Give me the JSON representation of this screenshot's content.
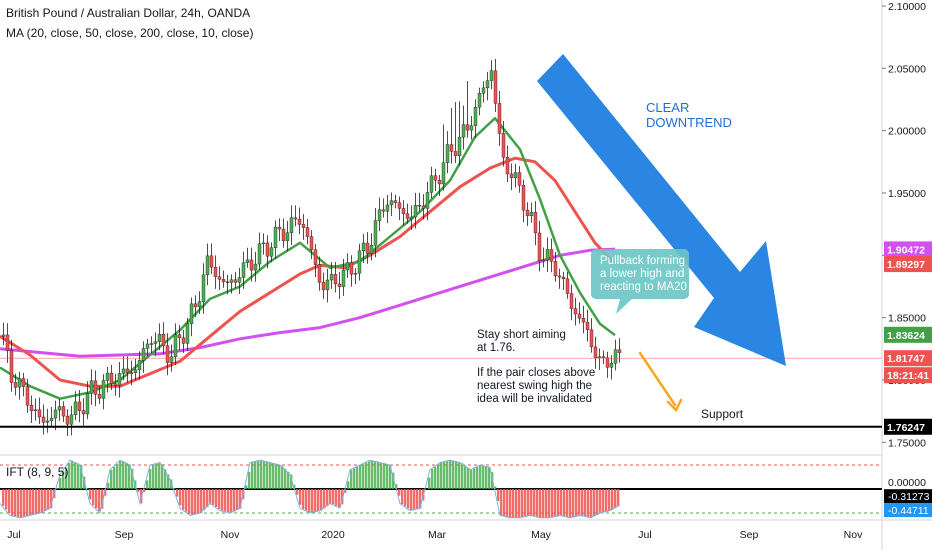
{
  "header": {
    "title": "British Pound / Australian Dollar, 24h, OANDA",
    "ma_legend": "MA (20, close, 50, close, 200, close, 10, close)"
  },
  "oscillator": {
    "label": "IFT (8, 9, 5)"
  },
  "colors": {
    "up": "#4caf50",
    "down": "#ef5350",
    "ma20": "#43a047",
    "ma50": "#ef5350",
    "ma200": "#d24ff0",
    "arrow": "#1f7fe0",
    "orange_arrow": "#f5a623",
    "callout_bg": "#6ac5c5",
    "support": "#000000"
  },
  "chart_data": {
    "type": "candlestick",
    "title": "British Pound / Australian Dollar, 24h, OANDA",
    "ylim": [
      1.735,
      2.1
    ],
    "x_ticks": [
      "Jul",
      "Sep",
      "Nov",
      "2020",
      "Mar",
      "May",
      "Jul",
      "Sep",
      "Nov"
    ],
    "y_ticks": [
      "2.10000",
      "2.05000",
      "2.00000",
      "1.95000",
      "1.90000",
      "1.85000",
      "1.80000",
      "1.75000"
    ],
    "price_guide": [
      [
        0,
        1.835
      ],
      [
        10,
        1.805
      ],
      [
        22,
        1.79
      ],
      [
        40,
        1.765
      ],
      [
        55,
        1.775
      ],
      [
        70,
        1.77
      ],
      [
        90,
        1.79
      ],
      [
        110,
        1.8
      ],
      [
        135,
        1.81
      ],
      [
        150,
        1.835
      ],
      [
        170,
        1.82
      ],
      [
        195,
        1.86
      ],
      [
        205,
        1.895
      ],
      [
        225,
        1.875
      ],
      [
        250,
        1.895
      ],
      [
        275,
        1.915
      ],
      [
        300,
        1.93
      ],
      [
        320,
        1.875
      ],
      [
        345,
        1.885
      ],
      [
        365,
        1.905
      ],
      [
        385,
        1.945
      ],
      [
        410,
        1.93
      ],
      [
        430,
        1.955
      ],
      [
        450,
        1.985
      ],
      [
        465,
        2.0
      ],
      [
        480,
        2.03
      ],
      [
        490,
        2.05
      ],
      [
        500,
        1.98
      ],
      [
        520,
        1.95
      ],
      [
        540,
        1.9
      ],
      [
        555,
        1.89
      ],
      [
        570,
        1.86
      ],
      [
        585,
        1.84
      ],
      [
        600,
        1.81
      ],
      [
        610,
        1.82
      ],
      [
        618,
        1.815
      ]
    ],
    "ma20": [
      [
        0,
        1.81
      ],
      [
        30,
        1.795
      ],
      [
        60,
        1.785
      ],
      [
        90,
        1.79
      ],
      [
        120,
        1.8
      ],
      [
        150,
        1.82
      ],
      [
        180,
        1.84
      ],
      [
        210,
        1.865
      ],
      [
        240,
        1.875
      ],
      [
        270,
        1.895
      ],
      [
        300,
        1.91
      ],
      [
        330,
        1.89
      ],
      [
        360,
        1.895
      ],
      [
        390,
        1.915
      ],
      [
        420,
        1.935
      ],
      [
        450,
        1.96
      ],
      [
        475,
        1.995
      ],
      [
        495,
        2.01
      ],
      [
        520,
        1.985
      ],
      [
        540,
        1.945
      ],
      [
        560,
        1.9
      ],
      [
        580,
        1.87
      ],
      [
        600,
        1.845
      ],
      [
        615,
        1.836
      ]
    ],
    "ma50": [
      [
        0,
        1.835
      ],
      [
        30,
        1.82
      ],
      [
        60,
        1.8
      ],
      [
        90,
        1.795
      ],
      [
        120,
        1.795
      ],
      [
        150,
        1.805
      ],
      [
        180,
        1.815
      ],
      [
        210,
        1.835
      ],
      [
        240,
        1.855
      ],
      [
        270,
        1.87
      ],
      [
        300,
        1.885
      ],
      [
        320,
        1.892
      ],
      [
        345,
        1.89
      ],
      [
        370,
        1.9
      ],
      [
        400,
        1.915
      ],
      [
        430,
        1.935
      ],
      [
        460,
        1.955
      ],
      [
        490,
        1.97
      ],
      [
        515,
        1.978
      ],
      [
        535,
        1.975
      ],
      [
        555,
        1.96
      ],
      [
        575,
        1.935
      ],
      [
        595,
        1.91
      ],
      [
        615,
        1.893
      ]
    ],
    "ma200": [
      [
        0,
        1.825
      ],
      [
        40,
        1.822
      ],
      [
        80,
        1.819
      ],
      [
        120,
        1.82
      ],
      [
        160,
        1.821
      ],
      [
        200,
        1.826
      ],
      [
        240,
        1.833
      ],
      [
        280,
        1.838
      ],
      [
        320,
        1.842
      ],
      [
        360,
        1.85
      ],
      [
        400,
        1.86
      ],
      [
        440,
        1.87
      ],
      [
        480,
        1.88
      ],
      [
        520,
        1.89
      ],
      [
        560,
        1.9
      ],
      [
        590,
        1.904
      ],
      [
        615,
        1.905
      ]
    ],
    "price_labels": [
      {
        "text": "1.90472",
        "value": 1.90472,
        "color": "#d24ff0"
      },
      {
        "text": "1.89297",
        "value": 1.89297,
        "color": "#ef5350"
      },
      {
        "text": "1.83624",
        "value": 1.83624,
        "color": "#43a047"
      },
      {
        "text": "1.81747",
        "value": 1.81747,
        "color": "#ef5350"
      },
      {
        "text": "18:21:41",
        "value": 1.8095,
        "color": "#ef5350"
      },
      {
        "text": "1.76247",
        "value": 1.76247,
        "color": "#000000"
      }
    ],
    "support_level": 1.76247,
    "last_price": 1.81747,
    "oscillator": {
      "name": "IFT (8, 9, 5)",
      "ticks": [
        "0.00000",
        "-0.31273",
        "-0.44711"
      ],
      "levels": [
        0.5,
        0,
        -0.5
      ],
      "values": [
        [
          0,
          -0.3
        ],
        [
          10,
          -0.55
        ],
        [
          20,
          -0.6
        ],
        [
          30,
          -0.55
        ],
        [
          40,
          -0.5
        ],
        [
          50,
          -0.4
        ],
        [
          60,
          0.3
        ],
        [
          70,
          0.6
        ],
        [
          80,
          0.5
        ],
        [
          90,
          -0.3
        ],
        [
          100,
          -0.5
        ],
        [
          110,
          0.4
        ],
        [
          120,
          0.6
        ],
        [
          130,
          0.5
        ],
        [
          140,
          -0.3
        ],
        [
          150,
          0.5
        ],
        [
          160,
          0.55
        ],
        [
          170,
          0.2
        ],
        [
          180,
          -0.4
        ],
        [
          190,
          -0.55
        ],
        [
          200,
          -0.5
        ],
        [
          210,
          -0.3
        ],
        [
          220,
          -0.45
        ],
        [
          230,
          -0.5
        ],
        [
          240,
          -0.4
        ],
        [
          250,
          0.55
        ],
        [
          260,
          0.6
        ],
        [
          270,
          0.55
        ],
        [
          280,
          0.5
        ],
        [
          290,
          0.3
        ],
        [
          300,
          -0.4
        ],
        [
          310,
          -0.5
        ],
        [
          320,
          -0.45
        ],
        [
          330,
          -0.3
        ],
        [
          340,
          -0.4
        ],
        [
          350,
          0.4
        ],
        [
          360,
          0.5
        ],
        [
          370,
          0.6
        ],
        [
          380,
          0.55
        ],
        [
          390,
          0.5
        ],
        [
          400,
          -0.3
        ],
        [
          410,
          -0.45
        ],
        [
          420,
          -0.4
        ],
        [
          430,
          0.4
        ],
        [
          440,
          0.55
        ],
        [
          450,
          0.6
        ],
        [
          460,
          0.55
        ],
        [
          470,
          0.4
        ],
        [
          480,
          0.5
        ],
        [
          490,
          0.45
        ],
        [
          500,
          -0.55
        ],
        [
          510,
          -0.6
        ],
        [
          520,
          -0.6
        ],
        [
          530,
          -0.55
        ],
        [
          540,
          -0.6
        ],
        [
          550,
          -0.6
        ],
        [
          560,
          -0.55
        ],
        [
          570,
          -0.6
        ],
        [
          580,
          -0.55
        ],
        [
          590,
          -0.6
        ],
        [
          600,
          -0.5
        ],
        [
          610,
          -0.45
        ],
        [
          618,
          -0.35
        ]
      ]
    }
  },
  "annotations": {
    "clear_l1": "CLEAR",
    "clear_l2": "DOWNTREND",
    "pullback_l1": "Pullback forming",
    "pullback_l2": "a lower high and",
    "pullback_l3": "reacting to MA20",
    "stay_l1": "Stay short aiming",
    "stay_l2": "at 1.76.",
    "ifclose_l1": "If the pair closes above",
    "ifclose_l2": "nearest swing high the",
    "ifclose_l3": "idea will be invalidated",
    "support": "Support"
  }
}
